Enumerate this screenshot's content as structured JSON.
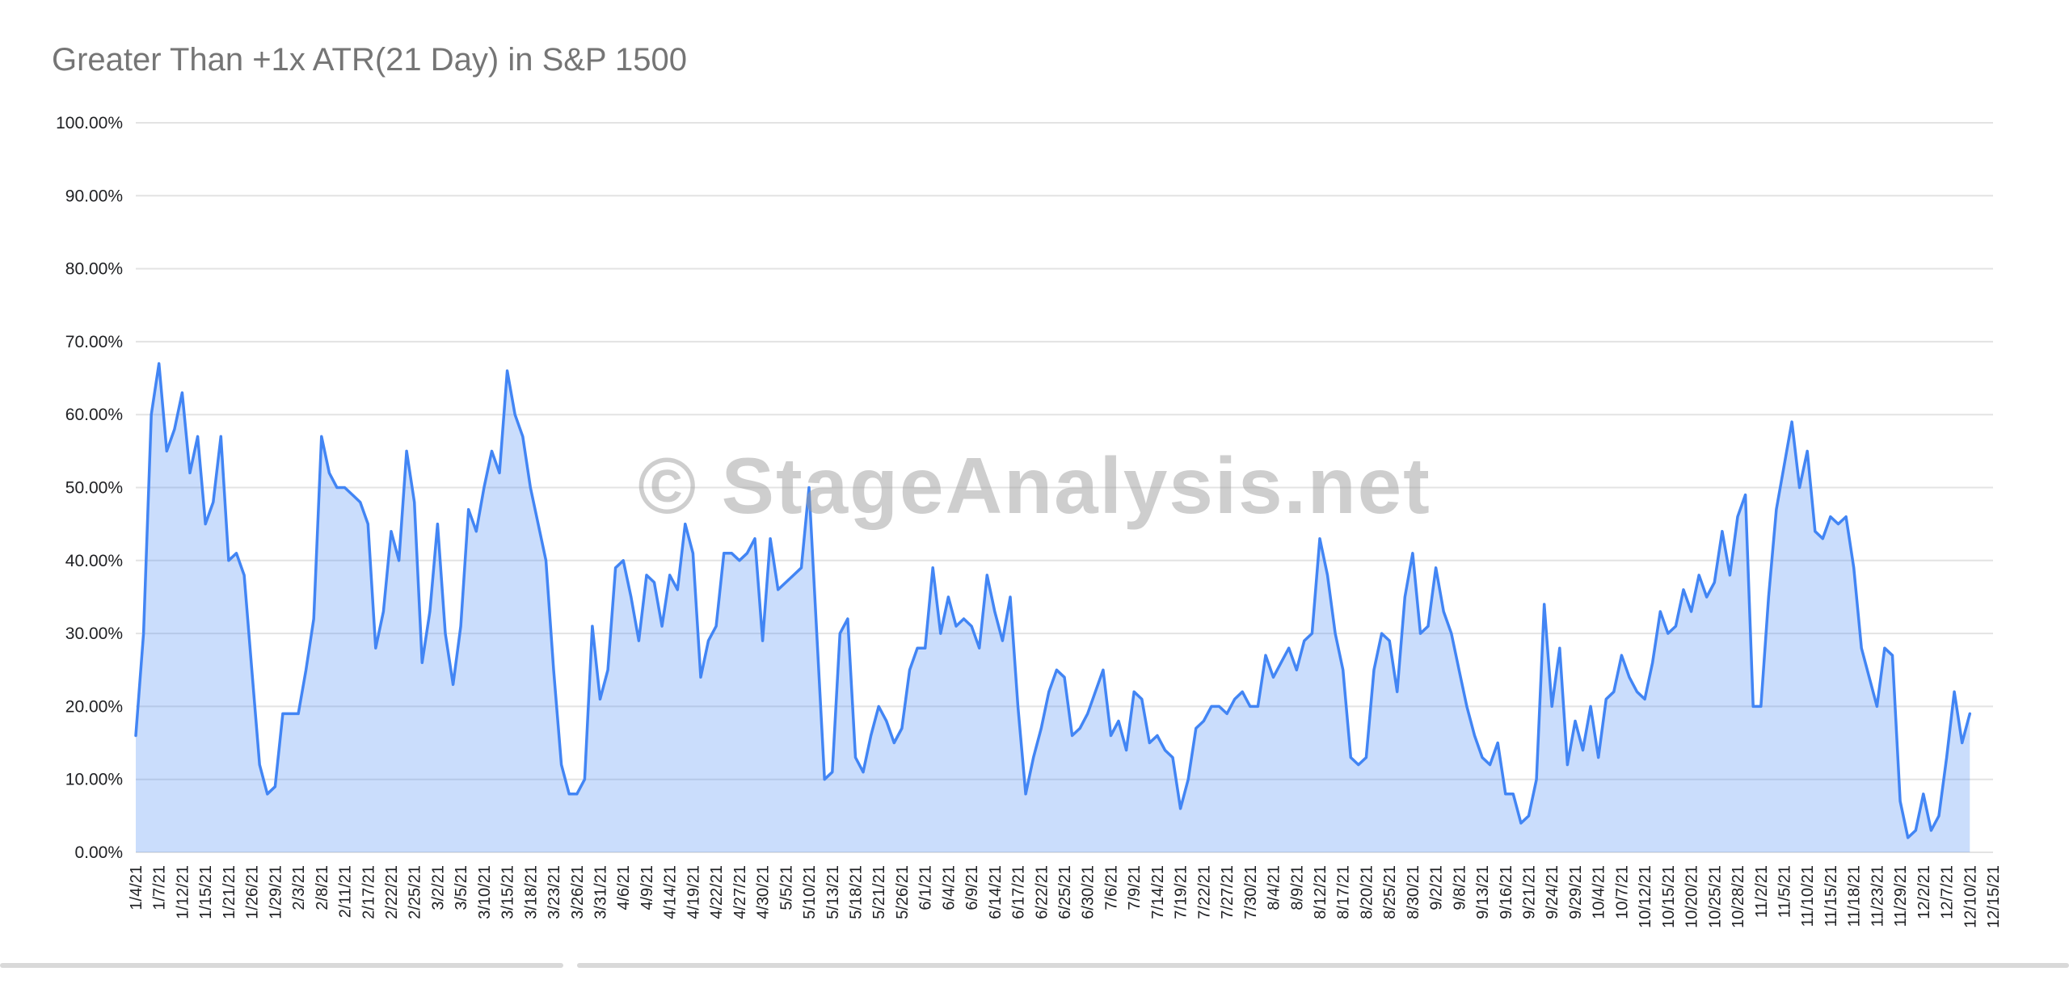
{
  "page": {
    "background": "#ffffff"
  },
  "chart": {
    "watermark": "© StageAnalysis.net",
    "colors": {
      "line": "#4285f4",
      "fill": "#4285f4",
      "grid": "#e3e3e3",
      "title": "#757575",
      "axis_text": "#202124",
      "watermark": "#9e9e9e",
      "divider": "#d9d9d9"
    },
    "fill_opacity": 0.28
  },
  "chart_data": {
    "type": "area",
    "title": "Greater Than +1x ATR(21 Day) in S&P 1500",
    "xlabel": "",
    "ylabel": "",
    "ylim": [
      0,
      100
    ],
    "grid": "horizontal",
    "legend": "none",
    "y_ticks": [
      "0.00%",
      "10.00%",
      "20.00%",
      "30.00%",
      "40.00%",
      "50.00%",
      "60.00%",
      "70.00%",
      "80.00%",
      "90.00%",
      "100.00%"
    ],
    "x_tick_step": 3,
    "x_domain_count": 241,
    "x_tick_labels": [
      "1/4/21",
      "1/7/21",
      "1/12/21",
      "1/15/21",
      "1/21/21",
      "1/26/21",
      "1/29/21",
      "2/3/21",
      "2/8/21",
      "2/11/21",
      "2/17/21",
      "2/22/21",
      "2/25/21",
      "3/2/21",
      "3/5/21",
      "3/10/21",
      "3/15/21",
      "3/18/21",
      "3/23/21",
      "3/26/21",
      "3/31/21",
      "4/6/21",
      "4/9/21",
      "4/14/21",
      "4/19/21",
      "4/22/21",
      "4/27/21",
      "4/30/21",
      "5/5/21",
      "5/10/21",
      "5/13/21",
      "5/18/21",
      "5/21/21",
      "5/26/21",
      "6/1/21",
      "6/4/21",
      "6/9/21",
      "6/14/21",
      "6/17/21",
      "6/22/21",
      "6/25/21",
      "6/30/21",
      "7/6/21",
      "7/9/21",
      "7/14/21",
      "7/19/21",
      "7/22/21",
      "7/27/21",
      "7/30/21",
      "8/4/21",
      "8/9/21",
      "8/12/21",
      "8/17/21",
      "8/20/21",
      "8/25/21",
      "8/30/21",
      "9/2/21",
      "9/8/21",
      "9/13/21",
      "9/16/21",
      "9/21/21",
      "9/24/21",
      "9/29/21",
      "10/4/21",
      "10/7/21",
      "10/12/21",
      "10/15/21",
      "10/20/21",
      "10/25/21",
      "10/28/21",
      "11/2/21",
      "11/5/21",
      "11/10/21",
      "11/15/21",
      "11/18/21",
      "11/23/21",
      "11/29/21",
      "12/2/21",
      "12/7/21",
      "12/10/21",
      "12/15/21"
    ],
    "x": [
      "1/4/21",
      "1/5/21",
      "1/6/21",
      "1/7/21",
      "1/8/21",
      "1/11/21",
      "1/12/21",
      "1/13/21",
      "1/14/21",
      "1/15/21",
      "1/19/21",
      "1/20/21",
      "1/21/21",
      "1/22/21",
      "1/25/21",
      "1/26/21",
      "1/27/21",
      "1/28/21",
      "1/29/21",
      "2/1/21",
      "2/2/21",
      "2/3/21",
      "2/4/21",
      "2/5/21",
      "2/8/21",
      "2/9/21",
      "2/10/21",
      "2/11/21",
      "2/12/21",
      "2/16/21",
      "2/17/21",
      "2/18/21",
      "2/19/21",
      "2/22/21",
      "2/23/21",
      "2/24/21",
      "2/25/21",
      "2/26/21",
      "3/1/21",
      "3/2/21",
      "3/3/21",
      "3/4/21",
      "3/5/21",
      "3/8/21",
      "3/9/21",
      "3/10/21",
      "3/11/21",
      "3/12/21",
      "3/15/21",
      "3/16/21",
      "3/17/21",
      "3/18/21",
      "3/19/21",
      "3/22/21",
      "3/23/21",
      "3/24/21",
      "3/25/21",
      "3/26/21",
      "3/29/21",
      "3/30/21",
      "3/31/21",
      "4/1/21",
      "4/5/21",
      "4/6/21",
      "4/7/21",
      "4/8/21",
      "4/9/21",
      "4/12/21",
      "4/13/21",
      "4/14/21",
      "4/15/21",
      "4/16/21",
      "4/19/21",
      "4/20/21",
      "4/21/21",
      "4/22/21",
      "4/23/21",
      "4/26/21",
      "4/27/21",
      "4/28/21",
      "4/29/21",
      "4/30/21",
      "5/3/21",
      "5/4/21",
      "5/5/21",
      "5/6/21",
      "5/7/21",
      "5/10/21",
      "5/11/21",
      "5/12/21",
      "5/13/21",
      "5/14/21",
      "5/17/21",
      "5/18/21",
      "5/19/21",
      "5/20/21",
      "5/21/21",
      "5/24/21",
      "5/25/21",
      "5/26/21",
      "5/27/21",
      "5/28/21",
      "6/1/21",
      "6/2/21",
      "6/3/21",
      "6/4/21",
      "6/7/21",
      "6/8/21",
      "6/9/21",
      "6/10/21",
      "6/11/21",
      "6/14/21",
      "6/15/21",
      "6/16/21",
      "6/17/21",
      "6/18/21",
      "6/21/21",
      "6/22/21",
      "6/23/21",
      "6/24/21",
      "6/25/21",
      "6/28/21",
      "6/29/21",
      "6/30/21",
      "7/1/21",
      "7/2/21",
      "7/6/21",
      "7/7/21",
      "7/8/21",
      "7/9/21",
      "7/12/21",
      "7/13/21",
      "7/14/21",
      "7/15/21",
      "7/16/21",
      "7/19/21",
      "7/20/21",
      "7/21/21",
      "7/22/21",
      "7/23/21",
      "7/26/21",
      "7/27/21",
      "7/28/21",
      "7/29/21",
      "7/30/21",
      "8/2/21",
      "8/3/21",
      "8/4/21",
      "8/5/21",
      "8/6/21",
      "8/9/21",
      "8/10/21",
      "8/11/21",
      "8/12/21",
      "8/13/21",
      "8/16/21",
      "8/17/21",
      "8/18/21",
      "8/19/21",
      "8/20/21",
      "8/23/21",
      "8/24/21",
      "8/25/21",
      "8/26/21",
      "8/27/21",
      "8/30/21",
      "8/31/21",
      "9/1/21",
      "9/2/21",
      "9/3/21",
      "9/7/21",
      "9/8/21",
      "9/9/21",
      "9/10/21",
      "9/13/21",
      "9/14/21",
      "9/15/21",
      "9/16/21",
      "9/17/21",
      "9/20/21",
      "9/21/21",
      "9/22/21",
      "9/23/21",
      "9/24/21",
      "9/27/21",
      "9/28/21",
      "9/29/21",
      "9/30/21",
      "10/1/21",
      "10/4/21",
      "10/5/21",
      "10/6/21",
      "10/7/21",
      "10/8/21",
      "10/11/21",
      "10/12/21",
      "10/13/21",
      "10/14/21",
      "10/15/21",
      "10/18/21",
      "10/19/21",
      "10/20/21",
      "10/21/21",
      "10/22/21",
      "10/25/21",
      "10/26/21",
      "10/27/21",
      "10/28/21",
      "10/29/21",
      "11/1/21",
      "11/2/21",
      "11/3/21",
      "11/4/21",
      "11/5/21",
      "11/8/21",
      "11/9/21",
      "11/10/21",
      "11/11/21",
      "11/12/21",
      "11/15/21",
      "11/16/21",
      "11/17/21",
      "11/18/21",
      "11/19/21",
      "11/22/21",
      "11/23/21",
      "11/24/21",
      "11/26/21",
      "11/29/21",
      "11/30/21",
      "12/1/21",
      "12/2/21",
      "12/3/21",
      "12/6/21",
      "12/7/21",
      "12/8/21",
      "12/9/21",
      "12/10/21"
    ],
    "values": [
      16,
      30,
      60,
      67,
      55,
      58,
      63,
      52,
      57,
      45,
      48,
      57,
      40,
      41,
      38,
      25,
      12,
      8,
      9,
      19,
      19,
      19,
      25,
      32,
      57,
      52,
      50,
      50,
      49,
      48,
      45,
      28,
      33,
      44,
      40,
      55,
      48,
      26,
      33,
      45,
      30,
      23,
      31,
      47,
      44,
      50,
      55,
      52,
      66,
      60,
      57,
      50,
      45,
      40,
      25,
      12,
      8,
      8,
      10,
      31,
      21,
      25,
      39,
      40,
      35,
      29,
      38,
      37,
      31,
      38,
      36,
      45,
      41,
      24,
      29,
      31,
      41,
      41,
      40,
      41,
      43,
      29,
      43,
      36,
      37,
      38,
      39,
      50,
      30,
      10,
      11,
      30,
      32,
      13,
      11,
      16,
      20,
      18,
      15,
      17,
      25,
      28,
      28,
      39,
      30,
      35,
      31,
      32,
      31,
      28,
      38,
      33,
      29,
      35,
      20,
      8,
      13,
      17,
      22,
      25,
      24,
      16,
      17,
      19,
      22,
      25,
      16,
      18,
      14,
      22,
      21,
      15,
      16,
      14,
      13,
      6,
      10,
      17,
      18,
      20,
      20,
      19,
      21,
      22,
      20,
      20,
      27,
      24,
      26,
      28,
      25,
      29,
      30,
      43,
      38,
      30,
      25,
      13,
      12,
      13,
      25,
      30,
      29,
      22,
      35,
      41,
      30,
      31,
      39,
      33,
      30,
      25,
      20,
      16,
      13,
      12,
      15,
      8,
      8,
      4,
      5,
      10,
      34,
      20,
      28,
      12,
      18,
      14,
      20,
      13,
      21,
      22,
      27,
      24,
      22,
      21,
      26,
      33,
      30,
      31,
      36,
      33,
      38,
      35,
      37,
      44,
      38,
      46,
      49,
      20,
      20,
      35,
      47,
      53,
      59,
      50,
      55,
      44,
      43,
      46,
      45,
      46,
      39,
      28,
      24,
      20,
      28,
      27,
      7,
      2,
      3,
      8,
      3,
      5,
      13,
      22,
      15,
      19
    ]
  }
}
